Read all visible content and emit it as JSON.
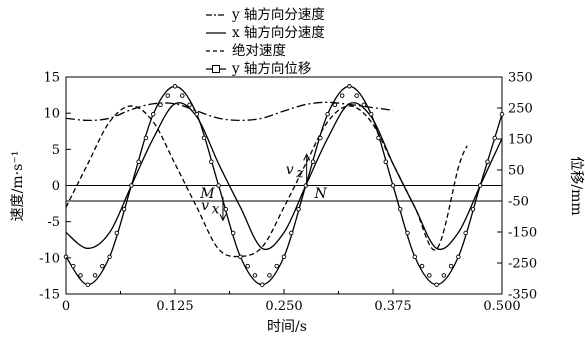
{
  "chart_data": {
    "type": "line",
    "xlabel": "时间/s",
    "ylabel_left": "速度/m·s⁻¹",
    "ylabel_right": "位移/mm",
    "x_ticks": [
      "0",
      "0.125",
      "0.250",
      "0.375",
      "0.500"
    ],
    "y_left_ticks": [
      "15",
      "10",
      "5",
      "0",
      "-5",
      "-10",
      "-15"
    ],
    "y_right_ticks": [
      "350",
      "250",
      "150",
      "50",
      "-50",
      "-150",
      "-250",
      "-350"
    ],
    "xlim": [
      0,
      0.5
    ],
    "ylim_left": [
      -15,
      15
    ],
    "ylim_right": [
      -350,
      350
    ],
    "grid": false,
    "legend_position": "top-left",
    "series": [
      {
        "name": "y 轴方向分速度",
        "axis": "left",
        "style": "dash-dot",
        "x": [
          0,
          0.025,
          0.05,
          0.075,
          0.1,
          0.125,
          0.15,
          0.175,
          0.2,
          0.225,
          0.25,
          0.275,
          0.3,
          0.325,
          0.35,
          0.375
        ],
        "y": [
          9.3,
          9.0,
          9.3,
          10.5,
          11.3,
          11.3,
          10.3,
          9.3,
          9.0,
          9.3,
          10.3,
          11.2,
          11.5,
          11.2,
          10.8,
          10.4
        ]
      },
      {
        "name": "x 轴方向分速度",
        "axis": "left",
        "style": "solid",
        "x": [
          0,
          0.025,
          0.05,
          0.075,
          0.1,
          0.125,
          0.15,
          0.175,
          0.2,
          0.225,
          0.25,
          0.275,
          0.3,
          0.325,
          0.35,
          0.375,
          0.4,
          0.425,
          0.45,
          0.475,
          0.5
        ],
        "y": [
          -6.5,
          -8.7,
          -6.5,
          0,
          6.5,
          11.3,
          9.5,
          3.0,
          -3.0,
          -8.7,
          -6.5,
          0,
          6.5,
          11.3,
          9.5,
          3.0,
          -3.0,
          -8.7,
          -6.5,
          0,
          6.5
        ]
      },
      {
        "name": "绝对速度",
        "axis": "left",
        "style": "dashed",
        "x": [
          0,
          0.025,
          0.05,
          0.075,
          0.1,
          0.125,
          0.15,
          0.175,
          0.2,
          0.225,
          0.25,
          0.275,
          0.3,
          0.325,
          0.35,
          0.375,
          0.4,
          0.425,
          0.45,
          0.46
        ],
        "y": [
          -3.0,
          3.0,
          8.8,
          11.0,
          8.8,
          3.0,
          -3.0,
          -8.8,
          -9.8,
          -8.5,
          -3.0,
          3.0,
          8.8,
          11.0,
          8.8,
          3.0,
          -3.0,
          -8.8,
          2.5,
          5.5
        ]
      },
      {
        "name": "y 轴方向位移",
        "axis": "right",
        "style": "solid-with-markers",
        "x": [
          0,
          0.025,
          0.05,
          0.075,
          0.1,
          0.125,
          0.15,
          0.175,
          0.2,
          0.225,
          0.25,
          0.275,
          0.3,
          0.325,
          0.35,
          0.375,
          0.4,
          0.425,
          0.45,
          0.475,
          0.5
        ],
        "y": [
          -230,
          -320,
          -230,
          0,
          230,
          320,
          230,
          0,
          -230,
          -320,
          -230,
          0,
          230,
          320,
          230,
          0,
          -230,
          -320,
          -230,
          0,
          230
        ]
      }
    ],
    "annotations": {
      "M": "M",
      "N": "N",
      "vz": "v",
      "vz_sub": "z",
      "vx": "v",
      "vx_sub": "x"
    }
  }
}
